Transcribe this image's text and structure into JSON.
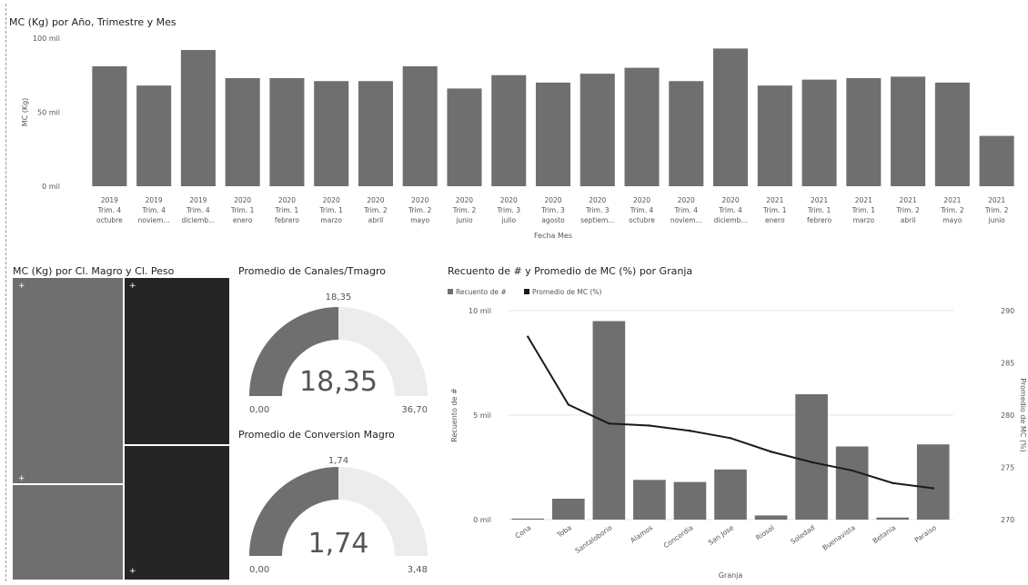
{
  "colors": {
    "bar": "#6f6f6f",
    "dark": "#252525",
    "light_gray": "#ececec",
    "line": "#1a1a1a",
    "axis_text": "#555555"
  },
  "chart_data": [
    {
      "type": "bar",
      "title": "MC (Kg) por Año, Trimestre y Mes",
      "xlabel": "Fecha Mes",
      "ylabel": "MC (Kg)",
      "ylim": [
        0,
        100
      ],
      "yticks": [
        "0 mil",
        "50 mil",
        "100 mil"
      ],
      "categories": [
        [
          "2019",
          "Trim. 4",
          "octubre"
        ],
        [
          "2019",
          "Trim. 4",
          "noviem..."
        ],
        [
          "2019",
          "Trim. 4",
          "diciemb..."
        ],
        [
          "2020",
          "Trim. 1",
          "enero"
        ],
        [
          "2020",
          "Trim. 1",
          "febrero"
        ],
        [
          "2020",
          "Trim. 1",
          "marzo"
        ],
        [
          "2020",
          "Trim. 2",
          "abril"
        ],
        [
          "2020",
          "Trim. 2",
          "mayo"
        ],
        [
          "2020",
          "Trim. 2",
          "junio"
        ],
        [
          "2020",
          "Trim. 3",
          "julio"
        ],
        [
          "2020",
          "Trim. 3",
          "agosto"
        ],
        [
          "2020",
          "Trim. 3",
          "septiem..."
        ],
        [
          "2020",
          "Trim. 4",
          "octubre"
        ],
        [
          "2020",
          "Trim. 4",
          "noviem..."
        ],
        [
          "2020",
          "Trim. 4",
          "diciemb..."
        ],
        [
          "2021",
          "Trim. 1",
          "enero"
        ],
        [
          "2021",
          "Trim. 1",
          "febrero"
        ],
        [
          "2021",
          "Trim. 1",
          "marzo"
        ],
        [
          "2021",
          "Trim. 2",
          "abril"
        ],
        [
          "2021",
          "Trim. 2",
          "mayo"
        ],
        [
          "2021",
          "Trim. 2",
          "junio"
        ]
      ],
      "values": [
        81,
        68,
        92,
        73,
        73,
        71,
        71,
        81,
        66,
        75,
        70,
        76,
        80,
        71,
        93,
        68,
        72,
        73,
        74,
        70,
        34
      ],
      "grid": false
    },
    {
      "type": "treemap",
      "title": "MC (Kg) por Cl. Magro y Cl. Peso",
      "marks": [
        "+",
        "+",
        "+",
        "+"
      ]
    },
    {
      "type": "gauge",
      "title": "Promedio de Canales/Tmagro",
      "value": 18.35,
      "value_label": "18,35",
      "target_label": "18,35",
      "min_label": "0,00",
      "max_label": "36,70",
      "min": 0,
      "max": 36.7
    },
    {
      "type": "gauge",
      "title": "Promedio de Conversion Magro",
      "value": 1.74,
      "value_label": "1,74",
      "target_label": "1,74",
      "min_label": "0,00",
      "max_label": "3,48",
      "min": 0,
      "max": 3.48
    },
    {
      "type": "bar",
      "title": "Recuento de # y Promedio de MC (%) por Granja",
      "xlabel": "Granja",
      "ylabel": "Recuento de #",
      "y2label": "Promedio de MC (%)",
      "legend": "top-left",
      "legend_items": [
        "Recuento de #",
        "Promedio de MC (%)"
      ],
      "yticks": [
        "0 mil",
        "5 mil",
        "10 mil"
      ],
      "y2ticks": [
        "270",
        "275",
        "280",
        "285",
        "290"
      ],
      "ylim": [
        0,
        10
      ],
      "y2lim": [
        270,
        290
      ],
      "categories": [
        "Cona",
        "Toba",
        "Santaloborio",
        "Alamos",
        "Concordia",
        "San Jose",
        "Riosol",
        "Soledad",
        "Buenavista",
        "Betania",
        "Paraiso"
      ],
      "series": [
        {
          "name": "Recuento de #",
          "type": "bar",
          "values": [
            0.05,
            1.0,
            9.5,
            1.9,
            1.8,
            2.4,
            0.2,
            6.0,
            3.5,
            0.1,
            3.6
          ]
        },
        {
          "name": "Promedio de MC (%)",
          "type": "line",
          "values": [
            287.5,
            281.0,
            279.2,
            279.0,
            278.5,
            277.8,
            276.5,
            275.5,
            274.7,
            273.5,
            273.0
          ]
        }
      ]
    }
  ]
}
